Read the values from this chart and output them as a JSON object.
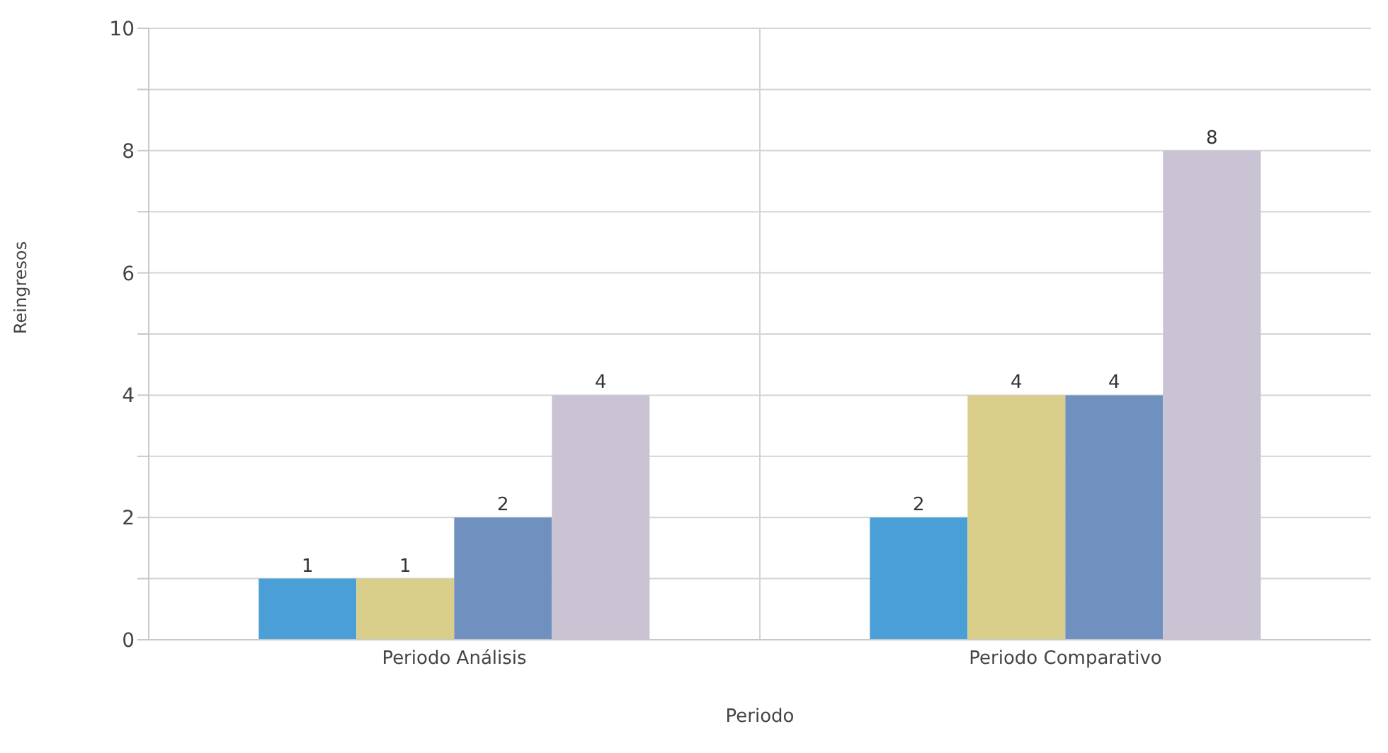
{
  "chart_data": {
    "type": "bar",
    "xlabel": "Periodo",
    "ylabel": "Reingresos",
    "categories": [
      "Periodo Análisis",
      "Periodo Comparativo"
    ],
    "series": [
      {
        "color": "#4a9fd6",
        "values": [
          1,
          2
        ]
      },
      {
        "color": "#d9cf8a",
        "values": [
          1,
          4
        ]
      },
      {
        "color": "#7090c0",
        "values": [
          2,
          4
        ]
      },
      {
        "color": "#c9c3d3",
        "values": [
          4,
          8
        ]
      }
    ],
    "ylim": [
      0,
      10
    ],
    "yticks": [
      0,
      {
        "value": 1,
        "label": null
      },
      2,
      {
        "value": 3,
        "label": null
      },
      4,
      {
        "value": 5,
        "label": null
      },
      6,
      {
        "value": 7,
        "label": null
      },
      8,
      {
        "value": 9,
        "label": null
      },
      10
    ],
    "grid": true,
    "data_labels": true
  }
}
